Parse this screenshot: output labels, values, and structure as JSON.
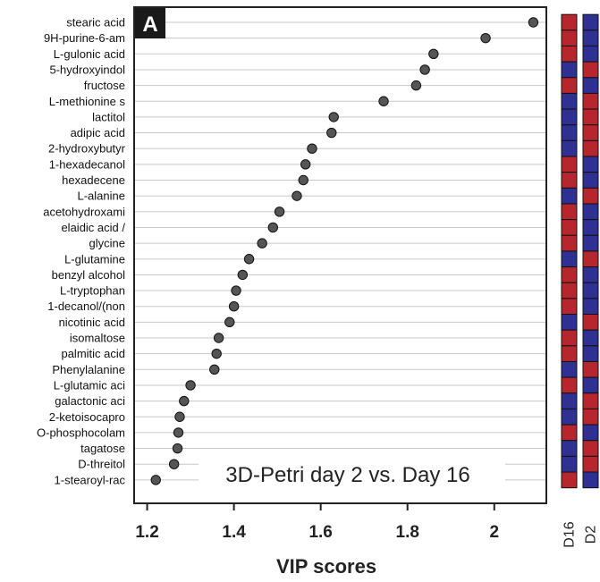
{
  "chart_data": {
    "type": "scatter",
    "panel_label": "A",
    "annotation": "3D-Petri day 2 vs. Day 16",
    "xlabel": "VIP scores",
    "xlim": [
      1.17,
      2.12
    ],
    "xticks": [
      "1.2",
      "1.4",
      "1.6",
      "1.8",
      "2"
    ],
    "xtick_values": [
      1.2,
      1.4,
      1.6,
      1.8,
      2.0
    ],
    "grid": "horizontal",
    "features": [
      "stearic acid",
      "9H-purine-6-am",
      "L-gulonic acid",
      "5-hydroxyindol",
      "fructose",
      "L-methionine s",
      "lactitol",
      "adipic acid",
      "2-hydroxybutyr",
      "1-hexadecanol",
      "hexadecene",
      "L-alanine",
      "acetohydroxami",
      "elaidic acid /",
      "glycine",
      "L-glutamine",
      "benzyl alcohol",
      "L-tryptophan",
      "1-decanol/(non",
      "nicotinic acid",
      "isomaltose",
      "palmitic acid",
      "Phenylalanine",
      "L-glutamic aci",
      "galactonic aci",
      "2-ketoisocapro",
      "O-phosphocolam",
      "tagatose",
      "D-threitol",
      "1-stearoyl-rac"
    ],
    "values": [
      2.09,
      1.98,
      1.86,
      1.84,
      1.82,
      1.745,
      1.63,
      1.625,
      1.58,
      1.565,
      1.56,
      1.545,
      1.505,
      1.49,
      1.465,
      1.435,
      1.42,
      1.405,
      1.4,
      1.39,
      1.365,
      1.36,
      1.355,
      1.3,
      1.285,
      1.275,
      1.272,
      1.27,
      1.262,
      1.22
    ],
    "heatmap": {
      "columns": [
        "D16",
        "D2"
      ],
      "high_color": "#b5272d",
      "low_color": "#2e3192",
      "D16": [
        "H",
        "H",
        "H",
        "L",
        "H",
        "L",
        "L",
        "L",
        "L",
        "H",
        "H",
        "L",
        "H",
        "H",
        "H",
        "L",
        "H",
        "H",
        "H",
        "L",
        "H",
        "H",
        "L",
        "H",
        "L",
        "L",
        "H",
        "L",
        "L",
        "H"
      ],
      "D2": [
        "L",
        "L",
        "L",
        "H",
        "L",
        "H",
        "H",
        "H",
        "H",
        "L",
        "L",
        "H",
        "L",
        "L",
        "L",
        "H",
        "L",
        "L",
        "L",
        "H",
        "L",
        "L",
        "H",
        "L",
        "H",
        "H",
        "L",
        "H",
        "H",
        "L"
      ]
    },
    "point_color": "#555555"
  }
}
